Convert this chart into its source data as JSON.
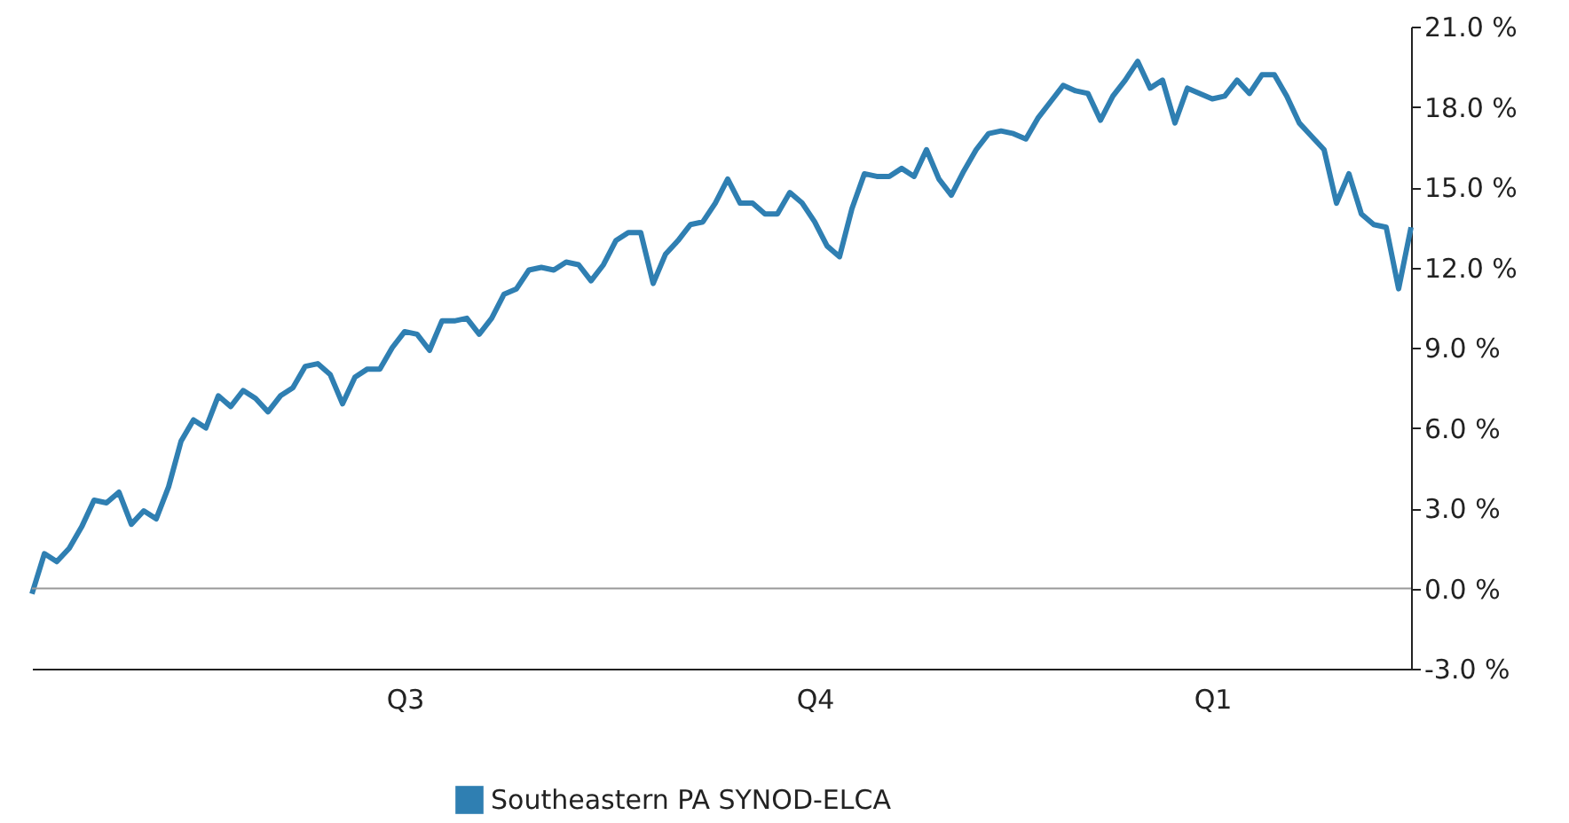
{
  "chart_data": {
    "type": "line",
    "categories": [
      null,
      null,
      null,
      null,
      null,
      null,
      null,
      null,
      null,
      null,
      null,
      null,
      null,
      null,
      null,
      null,
      null,
      null,
      null,
      null,
      null,
      null,
      null,
      null,
      null,
      null,
      null,
      null,
      null,
      null,
      "Q3",
      null,
      null,
      null,
      null,
      null,
      null,
      null,
      null,
      null,
      null,
      null,
      null,
      null,
      null,
      null,
      null,
      null,
      null,
      null,
      null,
      null,
      null,
      null,
      null,
      null,
      null,
      null,
      null,
      null,
      null,
      null,
      null,
      "Q4",
      null,
      null,
      null,
      null,
      null,
      null,
      null,
      null,
      null,
      null,
      null,
      null,
      null,
      null,
      null,
      null,
      null,
      null,
      null,
      null,
      null,
      null,
      null,
      null,
      null,
      null,
      null,
      null,
      null,
      null,
      null,
      "Q1",
      null,
      null,
      null,
      null,
      null,
      null,
      null,
      null,
      null,
      null,
      null,
      null,
      null,
      null,
      null,
      null
    ],
    "series": [
      {
        "name": "Southeastern PA SYNOD-ELCA",
        "color": "#2f7fb2",
        "values": [
          -0.2,
          1.3,
          1.0,
          1.5,
          2.3,
          3.3,
          3.2,
          3.6,
          2.4,
          2.9,
          2.6,
          3.8,
          5.5,
          6.3,
          6.0,
          7.2,
          6.8,
          7.4,
          7.1,
          6.6,
          7.2,
          7.5,
          8.3,
          8.4,
          8.0,
          6.9,
          7.9,
          8.2,
          8.2,
          9.0,
          9.6,
          9.5,
          8.9,
          10.0,
          10.0,
          10.1,
          9.5,
          10.1,
          11.0,
          11.2,
          11.9,
          12.0,
          11.9,
          12.2,
          12.1,
          11.5,
          12.1,
          13.0,
          13.3,
          13.3,
          11.4,
          12.5,
          13.0,
          13.6,
          13.7,
          14.4,
          15.3,
          14.4,
          14.4,
          14.0,
          14.0,
          14.8,
          14.4,
          13.7,
          12.8,
          12.4,
          14.2,
          15.5,
          15.4,
          15.4,
          15.7,
          15.4,
          16.4,
          15.3,
          14.7,
          15.6,
          16.4,
          17.0,
          17.1,
          17.0,
          16.8,
          17.6,
          18.2,
          18.8,
          18.6,
          18.5,
          17.5,
          18.4,
          19.0,
          19.7,
          18.7,
          19.0,
          17.4,
          18.7,
          18.5,
          18.3,
          18.4,
          19.0,
          18.5,
          19.2,
          19.2,
          18.4,
          17.4,
          16.9,
          16.4,
          14.4,
          15.5,
          14.0,
          13.6,
          13.5,
          11.2,
          13.5
        ]
      }
    ],
    "ylim": [
      -3,
      21
    ],
    "yticks": [
      {
        "value": -3,
        "label": "-3.0 %"
      },
      {
        "value": 0,
        "label": "0.0 %"
      },
      {
        "value": 3,
        "label": "3.0 %"
      },
      {
        "value": 6,
        "label": "6.0 %"
      },
      {
        "value": 9,
        "label": "9.0 %"
      },
      {
        "value": 12,
        "label": "12.0 %"
      },
      {
        "value": 15,
        "label": "15.0 %"
      },
      {
        "value": 18,
        "label": "18.0 %"
      },
      {
        "value": 21,
        "label": "21.0 %"
      }
    ],
    "ref_lines": [
      {
        "axis": "y",
        "value": 0,
        "label": null,
        "color": "#999999"
      }
    ],
    "legend": "bottom",
    "marker": "none",
    "line_style": "solid"
  }
}
